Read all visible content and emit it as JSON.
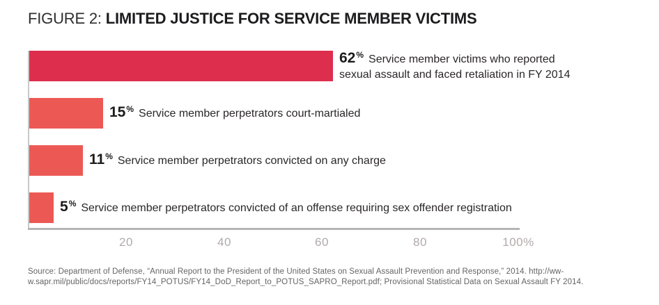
{
  "title": {
    "prefix": "FIGURE 2:",
    "main": "LIMITED JUSTICE FOR SERVICE MEMBER VICTIMS"
  },
  "chart_data": {
    "type": "bar",
    "orientation": "horizontal",
    "xlim": [
      0,
      100
    ],
    "grid": false,
    "accent_color": "#dd2e4e",
    "secondary_color": "#ec5955",
    "x_ticks": [
      {
        "value": 20,
        "label": "20"
      },
      {
        "value": 40,
        "label": "40"
      },
      {
        "value": 60,
        "label": "60"
      },
      {
        "value": 80,
        "label": "80"
      },
      {
        "value": 100,
        "label": "100%"
      }
    ],
    "bars": [
      {
        "value": 62,
        "unit": "%",
        "color": "#dd2e4e",
        "label_lines": [
          "Service member victims who reported",
          "sexual assault and faced retaliation in FY 2014"
        ]
      },
      {
        "value": 15,
        "unit": "%",
        "color": "#ec5955",
        "label_lines": [
          "Service member perpetrators court-martialed"
        ]
      },
      {
        "value": 11,
        "unit": "%",
        "color": "#ec5955",
        "label_lines": [
          "Service member perpetrators convicted on any charge"
        ]
      },
      {
        "value": 5,
        "unit": "%",
        "color": "#ec5955",
        "label_lines": [
          "Service member perpetrators convicted of an offense requiring sex offender registration"
        ]
      }
    ]
  },
  "source": {
    "line1": "Source: Department of Defense, “Annual Report to the President of the United States on Sexual Assault Prevention and Response,” 2014. http://ww-",
    "line2": "w.sapr.mil/public/docs/reports/FY14_POTUS/FY14_DoD_Report_to_POTUS_SAPRO_Report.pdf; Provisional Statistical Data on Sexual Assault FY 2014."
  }
}
